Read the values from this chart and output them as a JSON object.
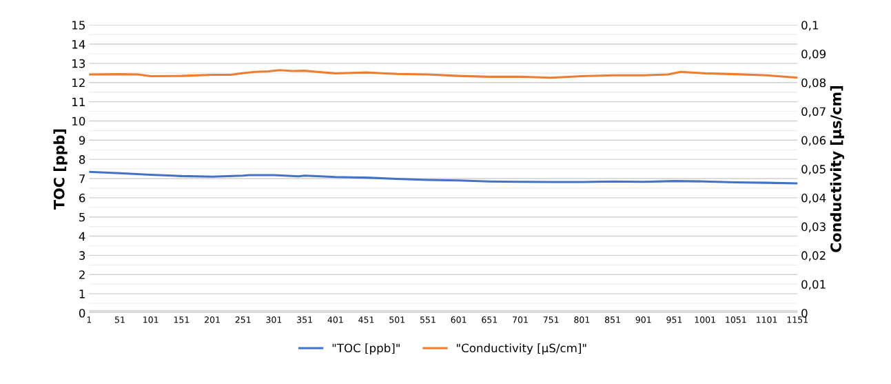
{
  "chart_data": {
    "type": "line",
    "ylabel": "TOC [ppb]",
    "y2label": "Conductivity [µs/cm]",
    "series": [
      {
        "name": "\"TOC [ppb]\"",
        "color": "#4472c4",
        "x": [
          1,
          51,
          101,
          151,
          201,
          251,
          261,
          301,
          341,
          351,
          401,
          451,
          501,
          551,
          601,
          651,
          701,
          751,
          801,
          851,
          901,
          951,
          1001,
          1051,
          1101,
          1151
        ],
        "values": [
          7.35,
          7.28,
          7.2,
          7.13,
          7.1,
          7.15,
          7.18,
          7.18,
          7.12,
          7.15,
          7.08,
          7.05,
          6.98,
          6.93,
          6.9,
          6.85,
          6.83,
          6.82,
          6.82,
          6.85,
          6.83,
          6.87,
          6.85,
          6.8,
          6.78,
          6.75
        ]
      },
      {
        "name": "\"Conductivity [µS/cm]\"",
        "color": "#ed7d31",
        "axis": "y2",
        "x": [
          1,
          51,
          81,
          101,
          151,
          201,
          231,
          251,
          271,
          291,
          311,
          331,
          351,
          371,
          401,
          451,
          471,
          501,
          551,
          601,
          651,
          701,
          751,
          801,
          851,
          901,
          941,
          961,
          1001,
          1051,
          1101,
          1151
        ],
        "values": [
          0.0828,
          0.0829,
          0.0828,
          0.0822,
          0.0823,
          0.0827,
          0.0827,
          0.0833,
          0.0837,
          0.0839,
          0.0843,
          0.084,
          0.0841,
          0.0837,
          0.0832,
          0.0835,
          0.0833,
          0.083,
          0.0828,
          0.0823,
          0.082,
          0.082,
          0.0817,
          0.0822,
          0.0825,
          0.0825,
          0.0828,
          0.0837,
          0.0832,
          0.0829,
          0.0825,
          0.0817
        ]
      }
    ],
    "xlim": [
      1,
      1151
    ],
    "xticks": [
      1,
      51,
      101,
      151,
      201,
      251,
      301,
      351,
      401,
      451,
      501,
      551,
      601,
      651,
      701,
      751,
      801,
      851,
      901,
      951,
      1001,
      1051,
      1101,
      1151
    ],
    "ylim": [
      0,
      15
    ],
    "yticks": [
      0,
      1,
      2,
      3,
      4,
      5,
      6,
      7,
      8,
      9,
      10,
      11,
      12,
      13,
      14,
      15
    ],
    "y2lim": [
      0,
      0.1
    ],
    "y2ticks": [
      0,
      {
        "value": 0.01,
        "label": "0,01"
      },
      {
        "value": 0.02,
        "label": "0,02"
      },
      {
        "value": 0.03,
        "label": "0,03"
      },
      {
        "value": 0.04,
        "label": "0,04"
      },
      {
        "value": 0.05,
        "label": "0,05"
      },
      {
        "value": 0.06,
        "label": "0,06"
      },
      {
        "value": 0.07,
        "label": "0,07"
      },
      {
        "value": 0.08,
        "label": "0,08"
      },
      {
        "value": 0.09,
        "label": "0,09"
      },
      {
        "value": 0.1,
        "label": "0,1"
      }
    ],
    "grid": "y",
    "legend": "bottom",
    "marker": "none",
    "line_style": "solid"
  }
}
